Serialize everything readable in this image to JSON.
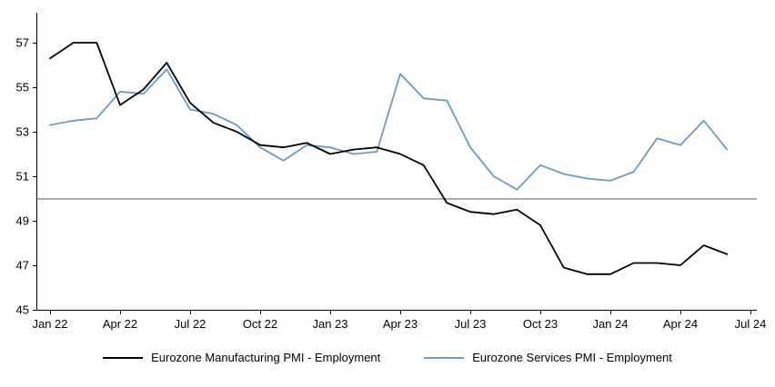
{
  "chart_data": {
    "type": "line",
    "x": [
      "Jan 22",
      "Feb 22",
      "Mar 22",
      "Apr 22",
      "May 22",
      "Jun 22",
      "Jul 22",
      "Aug 22",
      "Sep 22",
      "Oct 22",
      "Nov 22",
      "Dec 22",
      "Jan 23",
      "Feb 23",
      "Mar 23",
      "Apr 23",
      "May 23",
      "Jun 23",
      "Jul 23",
      "Aug 23",
      "Sep 23",
      "Oct 23",
      "Nov 23",
      "Dec 23",
      "Jan 24",
      "Feb 24",
      "Mar 24",
      "Apr 24",
      "May 24",
      "Jun 24"
    ],
    "series": [
      {
        "name": "Eurozone Manufacturing PMI - Employment",
        "color": "#000000",
        "values": [
          56.3,
          57.0,
          57.0,
          54.2,
          54.9,
          56.1,
          54.3,
          53.4,
          53.0,
          52.4,
          52.3,
          52.5,
          52.0,
          52.2,
          52.3,
          52.0,
          51.5,
          49.8,
          49.4,
          49.3,
          49.5,
          48.8,
          46.9,
          46.6,
          46.6,
          47.1,
          47.1,
          47.0,
          47.9,
          47.5
        ]
      },
      {
        "name": "Eurozone Services PMI - Employment",
        "color": "#6a9bc3",
        "values": [
          53.3,
          53.5,
          53.6,
          54.8,
          54.7,
          55.8,
          54.0,
          53.8,
          53.3,
          52.3,
          51.7,
          52.4,
          52.3,
          52.0,
          52.1,
          55.6,
          54.5,
          54.4,
          52.3,
          51.0,
          50.4,
          51.5,
          51.1,
          50.9,
          50.8,
          51.2,
          52.7,
          52.4,
          53.5,
          52.2
        ]
      }
    ],
    "title": "",
    "xlabel": "",
    "ylabel": "",
    "ylim": [
      45,
      57
    ],
    "yticks": [
      45,
      47,
      49,
      51,
      53,
      55,
      57
    ],
    "xtick_labels": [
      "Jan 22",
      "Apr 22",
      "Jul 22",
      "Oct 22",
      "Jan 23",
      "Apr 23",
      "Jul 23",
      "Oct 23",
      "Jan 24",
      "Apr 24",
      "Jul 24"
    ],
    "xtick_month_positions": [
      0,
      3,
      6,
      9,
      12,
      15,
      18,
      21,
      24,
      27,
      30
    ],
    "x_domain_months": 30,
    "reference_line": 50,
    "grid": false,
    "legend_position": "bottom",
    "axis_color": "#000000",
    "reference_line_color": "#595959",
    "background": "#ffffff"
  }
}
